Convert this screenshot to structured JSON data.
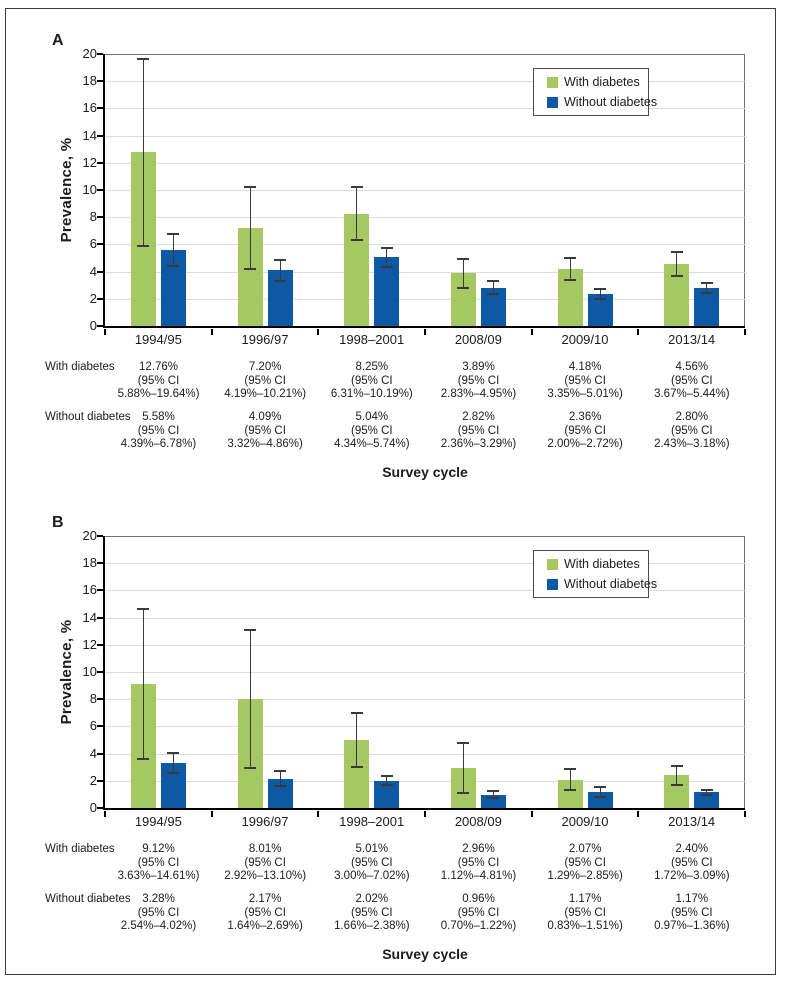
{
  "colors": {
    "with_diabetes": "#a5c863",
    "without_diabetes": "#0d59a3",
    "gridline": "#dcdcdc",
    "error_bar": "#3a3a3a",
    "plot_frame": "#6f6f6f",
    "axis": "#000000"
  },
  "chart_data": [
    {
      "type": "bar",
      "panel_label": "A",
      "ylabel": "Prevalence, %",
      "xlabel": "Survey cycle",
      "ylim": [
        0,
        20
      ],
      "ytick_step": 2,
      "grid": true,
      "legend_position": "top-right-inside",
      "categories": [
        "1994/95",
        "1996/97",
        "1998–2001",
        "2008/09",
        "2009/10",
        "2013/14"
      ],
      "series": [
        {
          "name": "With diabetes",
          "color_key": "with_diabetes",
          "values": [
            12.76,
            7.2,
            8.25,
            3.89,
            4.18,
            4.56
          ],
          "ci_low": [
            5.88,
            4.19,
            6.31,
            2.83,
            3.35,
            3.67
          ],
          "ci_high": [
            19.64,
            10.21,
            10.19,
            4.95,
            5.01,
            5.44
          ]
        },
        {
          "name": "Without diabetes",
          "color_key": "without_diabetes",
          "values": [
            5.58,
            4.09,
            5.04,
            2.82,
            2.36,
            2.8
          ],
          "ci_low": [
            4.39,
            3.32,
            4.34,
            2.36,
            2.0,
            2.43
          ],
          "ci_high": [
            6.78,
            4.86,
            5.74,
            3.29,
            2.72,
            3.18
          ]
        }
      ],
      "table": {
        "rows": [
          {
            "label": "With diabetes",
            "cells": [
              [
                "12.76%",
                "(95% CI",
                "5.88%–19.64%)"
              ],
              [
                "7.20%",
                "(95% CI",
                "4.19%–10.21%)"
              ],
              [
                "8.25%",
                "(95% CI",
                "6.31%–10.19%)"
              ],
              [
                "3.89%",
                "(95% CI",
                "2.83%–4.95%)"
              ],
              [
                "4.18%",
                "(95% CI",
                "3.35%–5.01%)"
              ],
              [
                "4.56%",
                "(95% CI",
                "3.67%–5.44%)"
              ]
            ]
          },
          {
            "label": "Without diabetes",
            "cells": [
              [
                "5.58%",
                "(95% CI",
                "4.39%–6.78%)"
              ],
              [
                "4.09%",
                "(95% CI",
                "3.32%–4.86%)"
              ],
              [
                "5.04%",
                "(95% CI",
                "4.34%–5.74%)"
              ],
              [
                "2.82%",
                "(95% CI",
                "2.36%–3.29%)"
              ],
              [
                "2.36%",
                "(95% CI",
                "2.00%–2.72%)"
              ],
              [
                "2.80%",
                "(95% CI",
                "2.43%–3.18%)"
              ]
            ]
          }
        ]
      }
    },
    {
      "type": "bar",
      "panel_label": "B",
      "ylabel": "Prevalence, %",
      "xlabel": "Survey cycle",
      "ylim": [
        0,
        20
      ],
      "ytick_step": 2,
      "grid": true,
      "legend_position": "top-right-inside",
      "categories": [
        "1994/95",
        "1996/97",
        "1998–2001",
        "2008/09",
        "2009/10",
        "2013/14"
      ],
      "series": [
        {
          "name": "With diabetes",
          "color_key": "with_diabetes",
          "values": [
            9.12,
            8.01,
            5.01,
            2.96,
            2.07,
            2.4
          ],
          "ci_low": [
            3.63,
            2.92,
            3.0,
            1.12,
            1.29,
            1.72
          ],
          "ci_high": [
            14.61,
            13.1,
            7.02,
            4.81,
            2.85,
            3.09
          ]
        },
        {
          "name": "Without diabetes",
          "color_key": "without_diabetes",
          "values": [
            3.28,
            2.17,
            2.02,
            0.96,
            1.17,
            1.17
          ],
          "ci_low": [
            2.54,
            1.64,
            1.66,
            0.7,
            0.83,
            0.97
          ],
          "ci_high": [
            4.02,
            2.69,
            2.38,
            1.22,
            1.51,
            1.36
          ]
        }
      ],
      "table": {
        "rows": [
          {
            "label": "With diabetes",
            "cells": [
              [
                "9.12%",
                "(95% CI",
                "3.63%–14.61%)"
              ],
              [
                "8.01%",
                "(95% CI",
                "2.92%–13.10%)"
              ],
              [
                "5.01%",
                "(95% CI",
                "3.00%–7.02%)"
              ],
              [
                "2.96%",
                "(95% CI",
                "1.12%–4.81%)"
              ],
              [
                "2.07%",
                "(95% CI",
                "1.29%–2.85%)"
              ],
              [
                "2.40%",
                "(95% CI",
                "1.72%–3.09%)"
              ]
            ]
          },
          {
            "label": "Without diabetes",
            "cells": [
              [
                "3.28%",
                "(95% CI",
                "2.54%–4.02%)"
              ],
              [
                "2.17%",
                "(95% CI",
                "1.64%–2.69%)"
              ],
              [
                "2.02%",
                "(95% CI",
                "1.66%–2.38%)"
              ],
              [
                "0.96%",
                "(95% CI",
                "0.70%–1.22%)"
              ],
              [
                "1.17%",
                "(95% CI",
                "0.83%–1.51%)"
              ],
              [
                "1.17%",
                "(95% CI",
                "0.97%–1.36%)"
              ]
            ]
          }
        ]
      }
    }
  ]
}
